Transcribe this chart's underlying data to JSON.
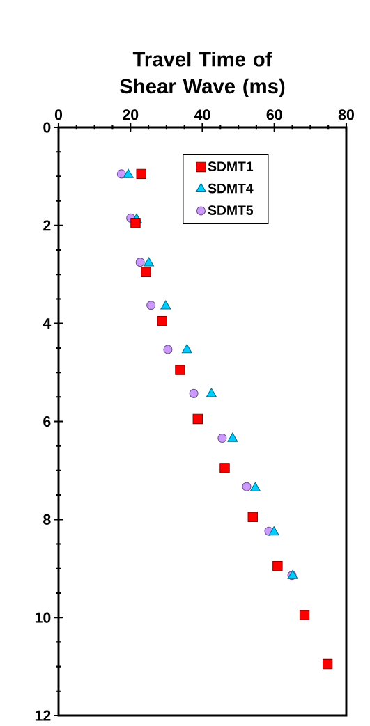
{
  "chart_data": {
    "type": "scatter",
    "xlabel": "Travel Time of Shear Wave (ms)",
    "xlim": [
      0,
      80
    ],
    "xticks": [
      0,
      20,
      40,
      60,
      80
    ],
    "ylim": [
      12,
      0
    ],
    "yticks": [
      0,
      2,
      4,
      6,
      8,
      10,
      12
    ],
    "legend": "top right",
    "grid": false,
    "series": [
      {
        "name": "SDMT1",
        "color": "#ff0000",
        "marker": "square",
        "x": [
          23.0,
          21.4,
          24.3,
          28.8,
          33.8,
          38.7,
          46.2,
          54.0,
          60.9,
          68.4,
          74.8
        ],
        "values": [
          0.95,
          1.95,
          2.95,
          3.95,
          4.95,
          5.95,
          6.95,
          7.95,
          8.95,
          9.95,
          10.95
        ]
      },
      {
        "name": "SDMT4",
        "color": "#00ccff",
        "marker": "triangle",
        "x": [
          19.4,
          21.7,
          25.1,
          29.8,
          35.7,
          42.5,
          48.4,
          54.7,
          59.9,
          65.1
        ],
        "values": [
          0.97,
          1.88,
          2.77,
          3.65,
          4.54,
          5.44,
          6.35,
          7.36,
          8.26,
          9.15
        ]
      },
      {
        "name": "SDMT5",
        "color": "#cc99ff",
        "marker": "circle",
        "x": [
          17.5,
          20.1,
          22.7,
          25.7,
          30.4,
          37.6,
          45.5,
          52.3,
          58.5,
          64.9
        ],
        "values": [
          0.95,
          1.85,
          2.75,
          3.63,
          4.53,
          5.43,
          6.34,
          7.33,
          8.24,
          9.14
        ]
      }
    ]
  }
}
